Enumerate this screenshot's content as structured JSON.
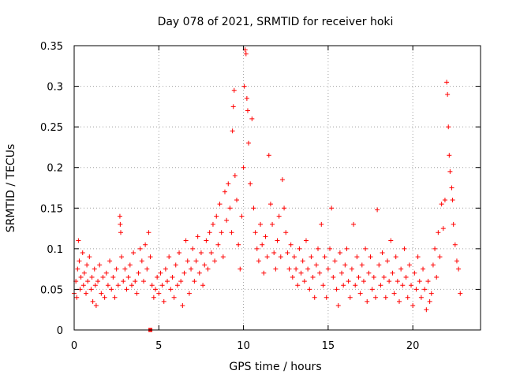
{
  "chart_data": {
    "type": "scatter",
    "title": "Day 078 of 2021, SRMTID for receiver hoki",
    "xlabel": "GPS time / hours",
    "ylabel": "SRMTID / TECUs",
    "xlim": [
      0,
      24
    ],
    "ylim": [
      0,
      0.35
    ],
    "xticks": [
      0,
      5,
      10,
      15,
      20
    ],
    "xtick_labels": [
      "0",
      "5",
      "10",
      "15",
      "20"
    ],
    "yticks": [
      0,
      0.05,
      0.1,
      0.15,
      0.2,
      0.25,
      0.3,
      0.35
    ],
    "ytick_labels": [
      "0",
      "0.05",
      "0.1",
      "0.15",
      "0.2",
      "0.25",
      "0.3",
      "0.35"
    ],
    "grid": true,
    "marker": "plus",
    "color": "#ff0000",
    "series": [
      {
        "name": "SRMTID",
        "points": [
          [
            0.0,
            0.045
          ],
          [
            0.1,
            0.06
          ],
          [
            0.15,
            0.04
          ],
          [
            0.2,
            0.075
          ],
          [
            0.25,
            0.11
          ],
          [
            0.3,
            0.085
          ],
          [
            0.35,
            0.05
          ],
          [
            0.4,
            0.065
          ],
          [
            0.5,
            0.095
          ],
          [
            0.55,
            0.055
          ],
          [
            0.6,
            0.07
          ],
          [
            0.7,
            0.045
          ],
          [
            0.75,
            0.08
          ],
          [
            0.8,
            0.06
          ],
          [
            0.9,
            0.09
          ],
          [
            1.0,
            0.05
          ],
          [
            1.05,
            0.065
          ],
          [
            1.1,
            0.035
          ],
          [
            1.2,
            0.075
          ],
          [
            1.25,
            0.055
          ],
          [
            1.3,
            0.03
          ],
          [
            1.4,
            0.06
          ],
          [
            1.5,
            0.08
          ],
          [
            1.6,
            0.045
          ],
          [
            1.7,
            0.065
          ],
          [
            1.8,
            0.04
          ],
          [
            1.9,
            0.07
          ],
          [
            2.0,
            0.055
          ],
          [
            2.1,
            0.085
          ],
          [
            2.2,
            0.05
          ],
          [
            2.3,
            0.065
          ],
          [
            2.4,
            0.04
          ],
          [
            2.5,
            0.075
          ],
          [
            2.6,
            0.055
          ],
          [
            2.7,
            0.14
          ],
          [
            2.72,
            0.13
          ],
          [
            2.75,
            0.12
          ],
          [
            2.8,
            0.09
          ],
          [
            2.9,
            0.06
          ],
          [
            3.0,
            0.075
          ],
          [
            3.1,
            0.05
          ],
          [
            3.2,
            0.065
          ],
          [
            3.3,
            0.08
          ],
          [
            3.4,
            0.055
          ],
          [
            3.5,
            0.095
          ],
          [
            3.6,
            0.06
          ],
          [
            3.7,
            0.045
          ],
          [
            3.8,
            0.07
          ],
          [
            3.9,
            0.1
          ],
          [
            4.0,
            0.085
          ],
          [
            4.1,
            0.06
          ],
          [
            4.2,
            0.105
          ],
          [
            4.3,
            0.075
          ],
          [
            4.4,
            0.12
          ],
          [
            4.5,
            0.09
          ],
          [
            4.6,
            0.055
          ],
          [
            4.7,
            0.04
          ],
          [
            4.8,
            0.05
          ],
          [
            4.9,
            0.065
          ],
          [
            5.0,
            0.045
          ],
          [
            5.1,
            0.07
          ],
          [
            5.2,
            0.055
          ],
          [
            5.3,
            0.035
          ],
          [
            5.4,
            0.075
          ],
          [
            5.5,
            0.06
          ],
          [
            5.6,
            0.09
          ],
          [
            5.7,
            0.05
          ],
          [
            5.8,
            0.065
          ],
          [
            5.9,
            0.04
          ],
          [
            6.0,
            0.08
          ],
          [
            6.1,
            0.055
          ],
          [
            6.2,
            0.095
          ],
          [
            6.3,
            0.06
          ],
          [
            6.4,
            0.03
          ],
          [
            6.5,
            0.07
          ],
          [
            6.6,
            0.11
          ],
          [
            6.7,
            0.085
          ],
          [
            6.8,
            0.045
          ],
          [
            6.9,
            0.075
          ],
          [
            7.0,
            0.1
          ],
          [
            7.1,
            0.06
          ],
          [
            7.2,
            0.085
          ],
          [
            7.3,
            0.115
          ],
          [
            7.4,
            0.07
          ],
          [
            7.5,
            0.095
          ],
          [
            7.6,
            0.055
          ],
          [
            7.7,
            0.08
          ],
          [
            7.8,
            0.11
          ],
          [
            7.9,
            0.075
          ],
          [
            8.0,
            0.12
          ],
          [
            8.1,
            0.095
          ],
          [
            8.2,
            0.13
          ],
          [
            8.3,
            0.085
          ],
          [
            8.4,
            0.14
          ],
          [
            8.5,
            0.105
          ],
          [
            8.6,
            0.155
          ],
          [
            8.7,
            0.12
          ],
          [
            8.8,
            0.09
          ],
          [
            8.9,
            0.17
          ],
          [
            9.0,
            0.135
          ],
          [
            9.1,
            0.18
          ],
          [
            9.2,
            0.15
          ],
          [
            9.3,
            0.12
          ],
          [
            9.35,
            0.245
          ],
          [
            9.4,
            0.275
          ],
          [
            9.45,
            0.295
          ],
          [
            9.5,
            0.19
          ],
          [
            9.6,
            0.16
          ],
          [
            9.7,
            0.105
          ],
          [
            9.8,
            0.075
          ],
          [
            9.9,
            0.14
          ],
          [
            10.0,
            0.2
          ],
          [
            10.05,
            0.3
          ],
          [
            10.1,
            0.345
          ],
          [
            10.15,
            0.34
          ],
          [
            10.2,
            0.285
          ],
          [
            10.25,
            0.27
          ],
          [
            10.3,
            0.23
          ],
          [
            10.4,
            0.18
          ],
          [
            10.5,
            0.26
          ],
          [
            10.6,
            0.15
          ],
          [
            10.7,
            0.12
          ],
          [
            10.8,
            0.1
          ],
          [
            10.9,
            0.085
          ],
          [
            11.0,
            0.13
          ],
          [
            11.1,
            0.105
          ],
          [
            11.2,
            0.07
          ],
          [
            11.3,
            0.115
          ],
          [
            11.4,
            0.09
          ],
          [
            11.5,
            0.215
          ],
          [
            11.6,
            0.155
          ],
          [
            11.7,
            0.13
          ],
          [
            11.8,
            0.095
          ],
          [
            11.9,
            0.075
          ],
          [
            12.0,
            0.11
          ],
          [
            12.1,
            0.14
          ],
          [
            12.2,
            0.09
          ],
          [
            12.3,
            0.185
          ],
          [
            12.4,
            0.15
          ],
          [
            12.5,
            0.12
          ],
          [
            12.6,
            0.095
          ],
          [
            12.7,
            0.075
          ],
          [
            12.8,
            0.105
          ],
          [
            12.9,
            0.065
          ],
          [
            13.0,
            0.09
          ],
          [
            13.1,
            0.075
          ],
          [
            13.2,
            0.055
          ],
          [
            13.3,
            0.1
          ],
          [
            13.4,
            0.07
          ],
          [
            13.5,
            0.085
          ],
          [
            13.6,
            0.06
          ],
          [
            13.7,
            0.11
          ],
          [
            13.8,
            0.075
          ],
          [
            13.9,
            0.05
          ],
          [
            14.0,
            0.09
          ],
          [
            14.1,
            0.065
          ],
          [
            14.2,
            0.04
          ],
          [
            14.3,
            0.08
          ],
          [
            14.4,
            0.1
          ],
          [
            14.5,
            0.07
          ],
          [
            14.6,
            0.13
          ],
          [
            14.7,
            0.055
          ],
          [
            14.8,
            0.09
          ],
          [
            14.9,
            0.04
          ],
          [
            15.0,
            0.075
          ],
          [
            15.1,
            0.1
          ],
          [
            15.2,
            0.15
          ],
          [
            15.3,
            0.065
          ],
          [
            15.4,
            0.085
          ],
          [
            15.5,
            0.05
          ],
          [
            15.6,
            0.03
          ],
          [
            15.7,
            0.095
          ],
          [
            15.8,
            0.07
          ],
          [
            15.9,
            0.055
          ],
          [
            16.0,
            0.08
          ],
          [
            16.1,
            0.1
          ],
          [
            16.2,
            0.06
          ],
          [
            16.3,
            0.04
          ],
          [
            16.4,
            0.075
          ],
          [
            16.5,
            0.13
          ],
          [
            16.6,
            0.055
          ],
          [
            16.7,
            0.09
          ],
          [
            16.8,
            0.065
          ],
          [
            16.9,
            0.045
          ],
          [
            17.0,
            0.08
          ],
          [
            17.1,
            0.06
          ],
          [
            17.2,
            0.1
          ],
          [
            17.3,
            0.035
          ],
          [
            17.4,
            0.07
          ],
          [
            17.5,
            0.09
          ],
          [
            17.6,
            0.05
          ],
          [
            17.7,
            0.065
          ],
          [
            17.8,
            0.04
          ],
          [
            17.9,
            0.148
          ],
          [
            18.0,
            0.08
          ],
          [
            18.1,
            0.055
          ],
          [
            18.2,
            0.095
          ],
          [
            18.3,
            0.065
          ],
          [
            18.4,
            0.04
          ],
          [
            18.5,
            0.085
          ],
          [
            18.6,
            0.06
          ],
          [
            18.7,
            0.11
          ],
          [
            18.8,
            0.07
          ],
          [
            18.9,
            0.045
          ],
          [
            19.0,
            0.09
          ],
          [
            19.1,
            0.06
          ],
          [
            19.2,
            0.035
          ],
          [
            19.3,
            0.075
          ],
          [
            19.4,
            0.055
          ],
          [
            19.5,
            0.1
          ],
          [
            19.6,
            0.065
          ],
          [
            19.7,
            0.04
          ],
          [
            19.8,
            0.08
          ],
          [
            19.9,
            0.055
          ],
          [
            20.0,
            0.03
          ],
          [
            20.1,
            0.07
          ],
          [
            20.2,
            0.05
          ],
          [
            20.3,
            0.09
          ],
          [
            20.4,
            0.06
          ],
          [
            20.5,
            0.04
          ],
          [
            20.6,
            0.075
          ],
          [
            20.7,
            0.05
          ],
          [
            20.8,
            0.025
          ],
          [
            20.9,
            0.06
          ],
          [
            21.0,
            0.035
          ],
          [
            21.1,
            0.045
          ],
          [
            21.2,
            0.08
          ],
          [
            21.3,
            0.1
          ],
          [
            21.4,
            0.065
          ],
          [
            21.5,
            0.12
          ],
          [
            21.6,
            0.09
          ],
          [
            21.7,
            0.155
          ],
          [
            21.8,
            0.125
          ],
          [
            21.9,
            0.16
          ],
          [
            22.0,
            0.305
          ],
          [
            22.05,
            0.29
          ],
          [
            22.1,
            0.25
          ],
          [
            22.15,
            0.215
          ],
          [
            22.2,
            0.195
          ],
          [
            22.3,
            0.175
          ],
          [
            22.35,
            0.16
          ],
          [
            22.4,
            0.13
          ],
          [
            22.5,
            0.105
          ],
          [
            22.6,
            0.085
          ],
          [
            22.7,
            0.075
          ],
          [
            22.8,
            0.045
          ]
        ]
      }
    ],
    "highlight_points": [
      [
        4.5,
        0.0
      ]
    ]
  }
}
